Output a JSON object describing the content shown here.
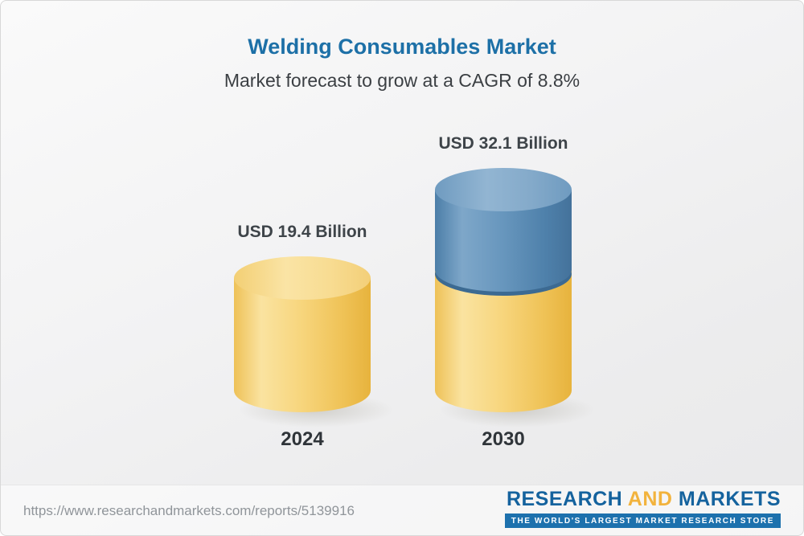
{
  "header": {
    "title": "Welding Consumables Market",
    "subtitle": "Market forecast to grow at a CAGR of 8.8%"
  },
  "chart_data": {
    "type": "bar",
    "title": "Welding Consumables Market",
    "subtitle": "Market forecast to grow at a CAGR of 8.8%",
    "cagr_percent": 8.8,
    "unit": "USD Billion",
    "categories": [
      "2024",
      "2030"
    ],
    "values": [
      19.4,
      32.1
    ],
    "value_labels": [
      "USD 19.4 Billion",
      "USD 32.1 Billion"
    ],
    "series_note": "2030 bar drawn as 2024 base (gold) plus growth segment (blue) stacked on top",
    "bar_colors": {
      "base_gold": "#F4CD69",
      "growth_blue": "#5C8CB4"
    },
    "ylim": [
      0,
      35
    ],
    "grid": false,
    "legend": "none"
  },
  "footer": {
    "report_url": "https://www.researchandmarkets.com/reports/5139916",
    "brand": {
      "part1": "RESEARCH",
      "part2": "AND",
      "part3": "MARKETS",
      "tagline": "THE WORLD'S LARGEST MARKET RESEARCH STORE"
    }
  },
  "colors": {
    "title_blue": "#1D70A7",
    "brand_blue": "#15639E",
    "brand_gold": "#F2B33D",
    "tagline_bar": "#1D71AD"
  }
}
